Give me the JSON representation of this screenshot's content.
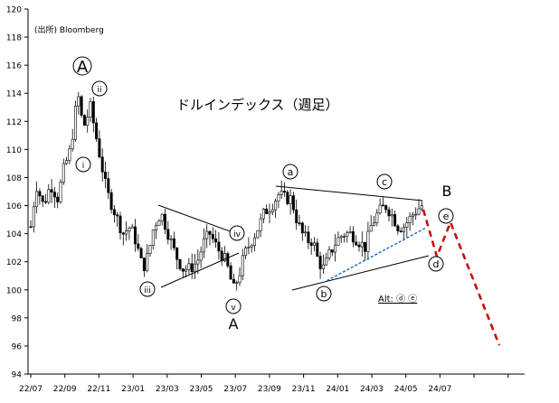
{
  "chart_data": {
    "type": "candlestick",
    "title": "ドルインデックス（週足）",
    "source": "(出所) Bloomberg",
    "ylim": [
      94,
      120
    ],
    "yticks": [
      94,
      96,
      98,
      100,
      102,
      104,
      106,
      108,
      110,
      112,
      114,
      116,
      118,
      120
    ],
    "x_tick_labels": [
      "22/07",
      "22/09",
      "22/11",
      "23/01",
      "23/03",
      "23/05",
      "23/07",
      "23/09",
      "23/11",
      "24/01",
      "24/03",
      "24/05",
      "24/07"
    ],
    "grid": false,
    "candle_colors": {
      "up": "#ffffff",
      "down": "#000000",
      "outline": "#000000"
    },
    "wave_labels": [
      {
        "text": "A"
      },
      {
        "text": "ii"
      },
      {
        "text": "i"
      },
      {
        "text": "iii"
      },
      {
        "text": "iv"
      },
      {
        "text": "v"
      },
      {
        "text": "A"
      },
      {
        "text": "a"
      },
      {
        "text": "b"
      },
      {
        "text": "c"
      },
      {
        "text": "B"
      },
      {
        "text": "d"
      },
      {
        "text": "e"
      }
    ],
    "annotation": "Alt: ⓓ  ⓔ",
    "projection_color": "#cc0000",
    "support_line_color": "#1f6fc4"
  }
}
